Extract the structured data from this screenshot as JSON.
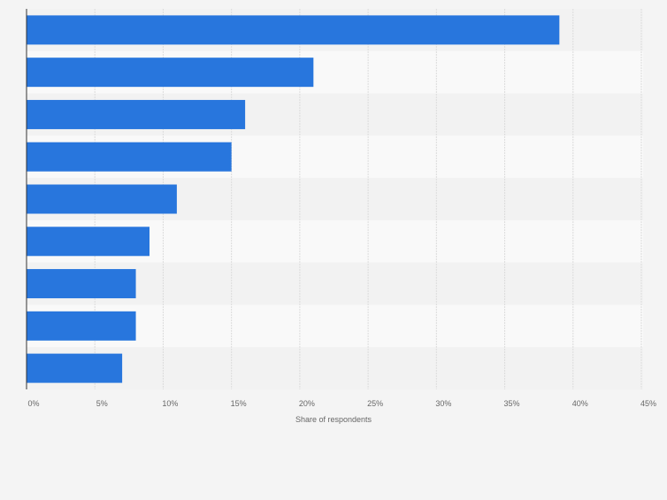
{
  "chart_data": {
    "type": "bar",
    "orientation": "horizontal",
    "categories": [
      "",
      "",
      "",
      "",
      "",
      "",
      "",
      "",
      ""
    ],
    "values": [
      39,
      21,
      16,
      15,
      11,
      9,
      8,
      8,
      7
    ],
    "unit": "%",
    "title": "",
    "xlabel": "Share of respondents",
    "ylabel": "",
    "xlim": [
      0,
      45
    ],
    "xticks": [
      "0%",
      "5%",
      "10%",
      "15%",
      "20%",
      "25%",
      "30%",
      "35%",
      "40%",
      "45%"
    ],
    "grid": true,
    "legend": "none",
    "colors": {
      "bar": "#2876dd",
      "band_a": "#f2f2f2",
      "band_b": "#f9f9f9",
      "grid": "#dcdcdc",
      "axis": "#333333"
    }
  }
}
